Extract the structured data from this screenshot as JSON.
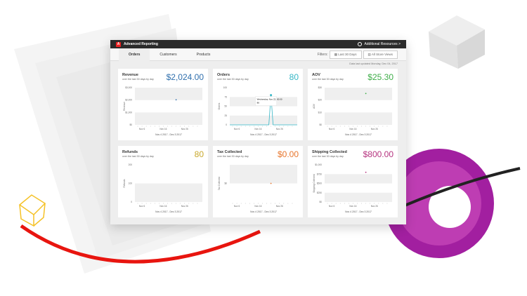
{
  "app": {
    "title": "Advanced Reporting",
    "resources": "Additional Resources >"
  },
  "tabs": [
    {
      "label": "Orders",
      "active": true
    },
    {
      "label": "Customers"
    },
    {
      "label": "Products"
    }
  ],
  "filters": {
    "label": "Filters:",
    "range": "Last 30 Days",
    "scope": "All Store Views"
  },
  "updated": "Data last updated Monday, Dec 04, 2017",
  "cards": [
    {
      "title": "Revenue",
      "subtitle": "over the last 30 days by day",
      "value": "$2,024.00",
      "color": "#2f6fad"
    },
    {
      "title": "Orders",
      "subtitle": "over the last 30 days by day",
      "value": "80",
      "color": "#35b6c6"
    },
    {
      "title": "AOV",
      "subtitle": "over the last 30 days by day",
      "value": "$25.30",
      "color": "#3fae49"
    },
    {
      "title": "Refunds",
      "subtitle": "over the last 30 days by day",
      "value": "80",
      "color": "#c8a82c"
    },
    {
      "title": "Tax Collected",
      "subtitle": "over the last 30 days by day",
      "value": "$0.00",
      "color": "#e8762d"
    },
    {
      "title": "Shipping Collected",
      "subtitle": "over the last 30 days by day",
      "value": "$800.00",
      "color": "#b5337f"
    }
  ],
  "chart_data": [
    {
      "type": "scatter",
      "ylabel": "Revenue",
      "yticks": [
        "$0",
        "$1,000",
        "$2,000",
        "$3,000"
      ],
      "ylim": [
        0,
        3000
      ],
      "xticks": [
        "Nov 6",
        "Nov 16",
        "Nov 26"
      ],
      "xrange": "Nov 4 2017 - Dec 3 2017",
      "points": [
        [
          "Nov 22",
          2024
        ]
      ]
    },
    {
      "type": "line",
      "ylabel": "Orders",
      "yticks": [
        "0",
        "25",
        "50",
        "75",
        "100"
      ],
      "ylim": [
        0,
        100
      ],
      "xticks": [
        "Nov 6",
        "Nov 16",
        "Nov 26"
      ],
      "xrange": "Nov 4 2017 - Dec 3 2017",
      "points": [
        [
          "Nov 21",
          0
        ],
        [
          "Nov 22",
          80
        ],
        [
          "Nov 23",
          0
        ]
      ],
      "tooltip": {
        "title": "Wednesday, Nov 22, 00:00",
        "value": "80"
      }
    },
    {
      "type": "scatter",
      "ylabel": "AOV",
      "yticks": [
        "$0",
        "$10",
        "$20",
        "$30"
      ],
      "ylim": [
        0,
        30
      ],
      "xticks": [
        "Nov 6",
        "Nov 16",
        "Nov 26"
      ],
      "xrange": "Nov 4 2017 - Dec 3 2017",
      "points": [
        [
          "Nov 22",
          25.3
        ]
      ]
    },
    {
      "type": "scatter",
      "ylabel": "Refunds",
      "yticks": [
        "0",
        "100",
        "200"
      ],
      "ylim": [
        0,
        200
      ],
      "xticks": [
        "Nov 6",
        "Nov 16",
        "Nov 26"
      ],
      "xrange": "Nov 4 2017 - Dec 3 2017",
      "points": []
    },
    {
      "type": "scatter",
      "ylabel": "Tax Collected",
      "yticks": [
        "$0"
      ],
      "ylim": [
        -1,
        1
      ],
      "xticks": [
        "Nov 6",
        "Nov 16",
        "Nov 26"
      ],
      "xrange": "Nov 4 2017 - Dec 3 2017",
      "points": [
        [
          "Nov 22",
          0
        ]
      ]
    },
    {
      "type": "scatter",
      "ylabel": "Shipping Collected",
      "yticks": [
        "$0",
        "$250",
        "$500",
        "$750",
        "$1,000"
      ],
      "ylim": [
        0,
        1000
      ],
      "xticks": [
        "Nov 6",
        "Nov 16",
        "Nov 26"
      ],
      "xrange": "Nov 4 2017 - Dec 3 2017",
      "points": [
        [
          "Nov 22",
          800
        ]
      ]
    }
  ]
}
